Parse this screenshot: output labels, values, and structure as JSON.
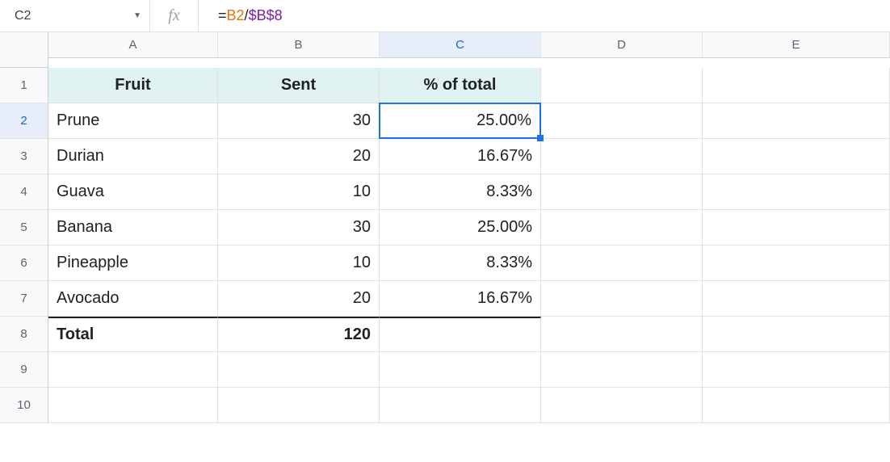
{
  "nameBox": {
    "value": "C2"
  },
  "formula": {
    "prefix": "=",
    "ref1": "B2",
    "sep": "/",
    "ref2": "$B$8",
    "ref1_color": "#e8710a",
    "ref2_color": "#7b1fa2"
  },
  "columns": [
    "A",
    "B",
    "C",
    "D",
    "E"
  ],
  "rowCount": 10,
  "selectedColIndex": 2,
  "selectedRowIndex": 1,
  "headerRow": {
    "background": "#e0f2f1",
    "cells": [
      "Fruit",
      "Sent",
      "% of total"
    ]
  },
  "dataRows": [
    {
      "fruit": "Prune",
      "sent": "30",
      "pct": "25.00%"
    },
    {
      "fruit": "Durian",
      "sent": "20",
      "pct": "16.67%"
    },
    {
      "fruit": "Guava",
      "sent": "10",
      "pct": "8.33%"
    },
    {
      "fruit": "Banana",
      "sent": "30",
      "pct": "25.00%"
    },
    {
      "fruit": "Pineapple",
      "sent": "10",
      "pct": "8.33%"
    },
    {
      "fruit": "Avocado",
      "sent": "20",
      "pct": "16.67%"
    }
  ],
  "totalRow": {
    "label": "Total",
    "value": "120"
  },
  "colors": {
    "selection_border": "#1a73e8",
    "header_bg": "#f8f9fa",
    "header_sel_bg": "#e7edf9",
    "grid_line": "#e1e1e1"
  }
}
